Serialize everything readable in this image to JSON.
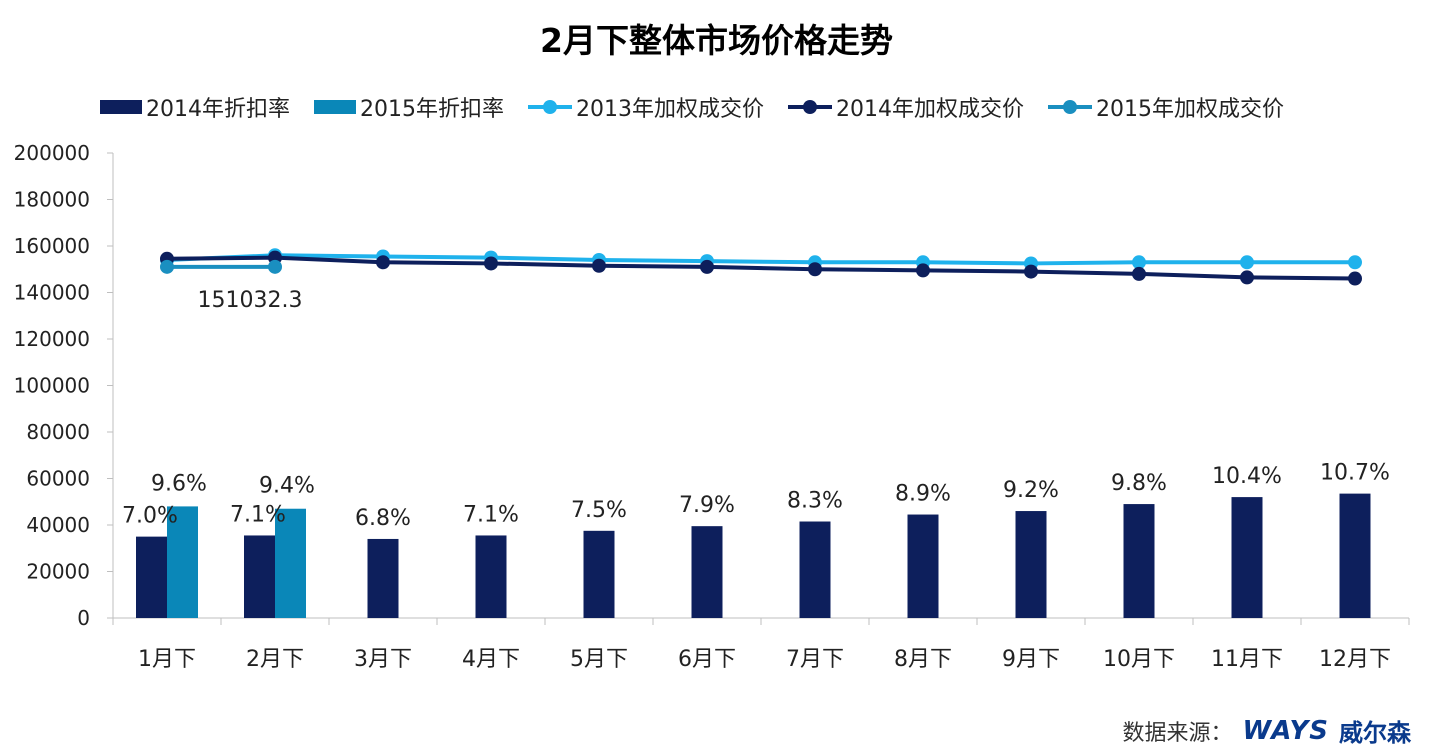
{
  "title": "2月下整体市场价格走势",
  "colors": {
    "bar2014": "#0d1f5c",
    "bar2015": "#0a87b8",
    "line2013": "#1fb2ec",
    "line2014": "#0d1f5c",
    "line2015": "#1a8fc0",
    "axis": "#bfbfbf",
    "text": "#222222"
  },
  "legend": [
    {
      "label": "2014年折扣率",
      "kind": "bar",
      "color": "#0d1f5c"
    },
    {
      "label": "2015年折扣率",
      "kind": "bar",
      "color": "#0a87b8"
    },
    {
      "label": "2013年加权成交价",
      "kind": "line",
      "color": "#1fb2ec"
    },
    {
      "label": "2014年加权成交价",
      "kind": "line",
      "color": "#0d1f5c"
    },
    {
      "label": "2015年加权成交价",
      "kind": "line",
      "color": "#1a8fc0"
    }
  ],
  "chart_data": {
    "type": "bar",
    "categories": [
      "1月下",
      "2月下",
      "3月下",
      "4月下",
      "5月下",
      "6月下",
      "7月下",
      "8月下",
      "9月下",
      "10月下",
      "11月下",
      "12月下"
    ],
    "ylim": [
      0,
      200000
    ],
    "yticks": [
      "0",
      "20000",
      "40000",
      "60000",
      "80000",
      "100000",
      "120000",
      "140000",
      "160000",
      "180000",
      "200000"
    ],
    "bar_series": [
      {
        "name": "2014年折扣率",
        "values": [
          35000,
          35500,
          34000,
          35500,
          37500,
          39500,
          41500,
          44500,
          46000,
          49000,
          52000,
          53500
        ],
        "labels": [
          "7.0%",
          "7.1%",
          "6.8%",
          "7.1%",
          "7.5%",
          "7.9%",
          "8.3%",
          "8.9%",
          "9.2%",
          "9.8%",
          "10.4%",
          "10.7%"
        ]
      },
      {
        "name": "2015年折扣率",
        "values": [
          48000,
          47000,
          null,
          null,
          null,
          null,
          null,
          null,
          null,
          null,
          null,
          null
        ],
        "labels": [
          "9.6%",
          "9.4%",
          "",
          "",
          "",
          "",
          "",
          "",
          "",
          "",
          "",
          ""
        ]
      }
    ],
    "line_series": [
      {
        "name": "2013年加权成交价",
        "values": [
          154000,
          156000,
          155500,
          155000,
          154000,
          153500,
          153000,
          153000,
          152500,
          153000,
          153000,
          153000
        ]
      },
      {
        "name": "2014年加权成交价",
        "values": [
          154500,
          155000,
          153000,
          152500,
          151500,
          151000,
          150000,
          149500,
          149000,
          148000,
          146500,
          146000
        ]
      },
      {
        "name": "2015年加权成交价",
        "values": [
          151032.3,
          151032.3,
          null,
          null,
          null,
          null,
          null,
          null,
          null,
          null,
          null,
          null
        ]
      }
    ],
    "annotation": "151032.3",
    "grid": false,
    "legend_position": "top"
  },
  "source": {
    "label": "数据来源：",
    "brand": "WAYS",
    "brand_cn": "威尔森"
  }
}
